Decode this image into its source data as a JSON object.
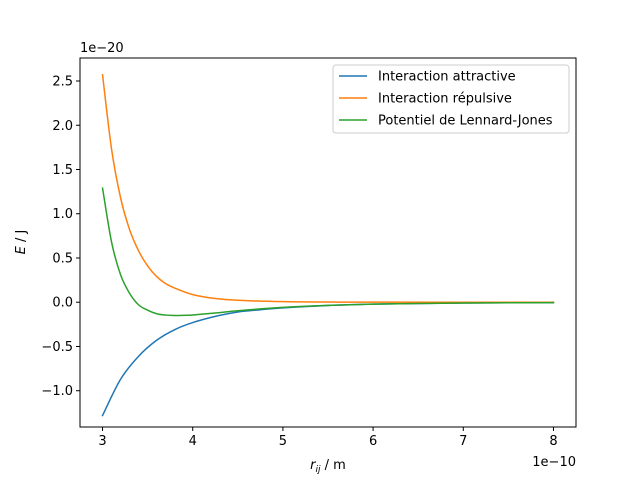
{
  "chart_data": {
    "type": "line",
    "xlabel_main": "r",
    "xlabel_sub": "ij",
    "xlabel_unit": " / m",
    "ylabel_main": "E",
    "ylabel_unit": " / J",
    "x_offset_label": "1e−10",
    "y_offset_label": "1e−20",
    "xlim": [
      2.75,
      8.25
    ],
    "ylim": [
      -1.41,
      2.76
    ],
    "x_ticks": [
      3,
      4,
      5,
      6,
      7,
      8
    ],
    "y_ticks": [
      -1.0,
      -0.5,
      0.0,
      0.5,
      1.0,
      1.5,
      2.0,
      2.5
    ],
    "x_tick_labels": [
      "3",
      "4",
      "5",
      "6",
      "7",
      "8"
    ],
    "y_tick_labels": [
      "−1.0",
      "−0.5",
      "0.0",
      "0.5",
      "1.0",
      "1.5",
      "2.0",
      "2.5"
    ],
    "grid": false,
    "legend_position": "top-right",
    "series": [
      {
        "name": "Interaction attractive",
        "color": "#1f77b4",
        "x": [
          3.0,
          3.2,
          3.4,
          3.6,
          3.8,
          4.0,
          4.25,
          4.5,
          4.75,
          5.0,
          5.5,
          6.0,
          6.5,
          7.0,
          7.5,
          8.0
        ],
        "y": [
          -1.28,
          -0.87,
          -0.61,
          -0.43,
          -0.31,
          -0.23,
          -0.16,
          -0.11,
          -0.085,
          -0.064,
          -0.037,
          -0.022,
          -0.014,
          -0.009,
          -0.006,
          -0.004
        ]
      },
      {
        "name": "Interaction répulsive",
        "color": "#ff7f0e",
        "x": [
          3.0,
          3.1,
          3.2,
          3.3,
          3.4,
          3.5,
          3.6,
          3.7,
          3.8,
          4.0,
          4.25,
          4.5,
          5.0,
          5.5,
          6.0,
          7.0,
          8.0
        ],
        "y": [
          2.57,
          1.73,
          1.18,
          0.82,
          0.58,
          0.41,
          0.29,
          0.21,
          0.16,
          0.086,
          0.042,
          0.022,
          0.0064,
          0.0021,
          0.0008,
          0.00013,
          2e-05
        ]
      },
      {
        "name": "Potentiel de Lennard-Jones",
        "color": "#2ca02c",
        "x": [
          3.0,
          3.1,
          3.2,
          3.3,
          3.4,
          3.5,
          3.6,
          3.7,
          3.8,
          3.9,
          4.0,
          4.25,
          4.5,
          5.0,
          5.5,
          6.0,
          6.5,
          7.0,
          7.5,
          8.0
        ],
        "y": [
          1.29,
          0.68,
          0.31,
          0.1,
          -0.03,
          -0.09,
          -0.13,
          -0.145,
          -0.15,
          -0.148,
          -0.144,
          -0.122,
          -0.096,
          -0.058,
          -0.035,
          -0.021,
          -0.014,
          -0.009,
          -0.006,
          -0.004
        ]
      }
    ]
  }
}
